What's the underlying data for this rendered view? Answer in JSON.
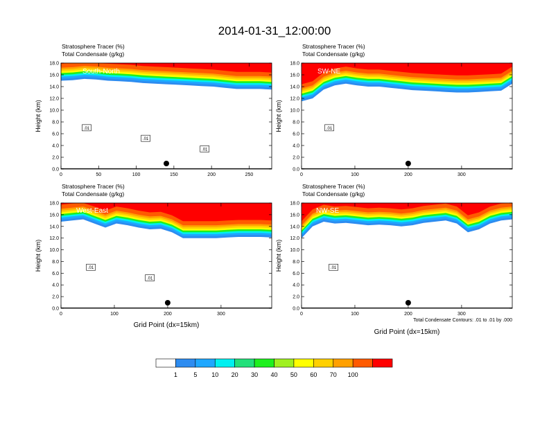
{
  "title": "2014-01-31_12:00:00",
  "footnote": "Total Condensate Contours: .01 to .01 by .000",
  "colorbar": {
    "colors": [
      "#ffffff",
      "#2d8cf0",
      "#1ea7ff",
      "#00f0f0",
      "#22e07a",
      "#1ef01e",
      "#a0f020",
      "#ffff00",
      "#ffd000",
      "#ffa000",
      "#ff5a00",
      "#ff0000"
    ],
    "labels": [
      "1",
      "5",
      "10",
      "20",
      "30",
      "40",
      "50",
      "60",
      "70",
      "100"
    ]
  },
  "chart_data": [
    {
      "type": "heatmap",
      "panel_label": "South-North",
      "title_lines": [
        "Stratosphere Tracer   (%)",
        "Total Condensate   (g/kg)"
      ],
      "ylabel": "Height (km)",
      "xlabel": "",
      "xlim": [
        0,
        280
      ],
      "ylim": [
        0,
        18
      ],
      "xticks": [
        "0",
        "50",
        "100",
        "150",
        "200",
        "250"
      ],
      "yticks": [
        "0.0",
        "2.0",
        "4.0",
        "6.0",
        "8.0",
        "10.0",
        "12.0",
        "14.0",
        "16.0",
        "18.0"
      ],
      "tracer_base_km": [
        15.0,
        15.1,
        15.3,
        15.2,
        15.0,
        14.9,
        14.8,
        14.6,
        14.5,
        14.4,
        14.3,
        14.2,
        14.1,
        14.0,
        13.8,
        13.6,
        13.6,
        13.6,
        13.5
      ],
      "contour_labels": [
        ".01",
        ".01",
        ".01"
      ],
      "marker_x": 140
    },
    {
      "type": "heatmap",
      "panel_label": "SW-NE",
      "title_lines": [
        "Stratosphere Tracer   (%)",
        "Total Condensate   (g/kg)"
      ],
      "ylabel": "Height (km)",
      "xlabel": "",
      "xlim": [
        0,
        395
      ],
      "ylim": [
        0,
        18
      ],
      "xticks": [
        "0",
        "100",
        "200",
        "300"
      ],
      "yticks": [
        "0.0",
        "2.0",
        "4.0",
        "6.0",
        "8.0",
        "10.0",
        "12.0",
        "14.0",
        "16.0",
        "18.0"
      ],
      "tracer_base_km": [
        11.5,
        12.0,
        13.5,
        14.2,
        14.5,
        14.2,
        14.0,
        14.0,
        13.8,
        13.6,
        13.4,
        13.3,
        13.2,
        13.1,
        13.0,
        13.0,
        13.1,
        13.2,
        13.3,
        14.5
      ],
      "contour_labels": [
        ".01"
      ],
      "marker_x": 200
    },
    {
      "type": "heatmap",
      "panel_label": "West-East",
      "title_lines": [
        "Stratosphere Tracer   (%)",
        "Total Condensate   (g/kg)"
      ],
      "ylabel": "Height (km)",
      "xlabel": "Grid Point (dx=15km)",
      "xlim": [
        0,
        395
      ],
      "ylim": [
        0,
        18
      ],
      "xticks": [
        "0",
        "100",
        "200",
        "300"
      ],
      "yticks": [
        "0.0",
        "2.0",
        "4.0",
        "6.0",
        "8.0",
        "10.0",
        "12.0",
        "14.0",
        "16.0",
        "18.0"
      ],
      "tracer_base_km": [
        14.8,
        15.0,
        15.2,
        14.5,
        13.8,
        14.5,
        14.2,
        13.8,
        13.5,
        13.6,
        13.0,
        12.0,
        12.0,
        12.0,
        12.0,
        12.1,
        12.2,
        12.2,
        12.2,
        12.1
      ],
      "contour_labels": [
        ".01",
        ".01"
      ],
      "marker_x": 200
    },
    {
      "type": "heatmap",
      "panel_label": "NW-SE",
      "title_lines": [
        "Stratosphere Tracer   (%)",
        "Total Condensate   (g/kg)"
      ],
      "ylabel": "Height (km)",
      "xlabel": "Grid Point (dx=15km)",
      "xlim": [
        0,
        395
      ],
      "ylim": [
        0,
        18
      ],
      "xticks": [
        "0",
        "100",
        "200",
        "300"
      ],
      "yticks": [
        "0.0",
        "2.0",
        "4.0",
        "6.0",
        "8.0",
        "10.0",
        "12.0",
        "14.0",
        "16.0",
        "18.0"
      ],
      "tracer_base_km": [
        12.0,
        14.0,
        14.8,
        14.5,
        14.6,
        14.4,
        14.2,
        14.3,
        14.2,
        14.0,
        14.2,
        14.6,
        14.8,
        15.0,
        14.5,
        13.0,
        13.5,
        14.5,
        15.0,
        15.2
      ],
      "contour_labels": [
        ".01"
      ],
      "marker_x": 200
    }
  ]
}
